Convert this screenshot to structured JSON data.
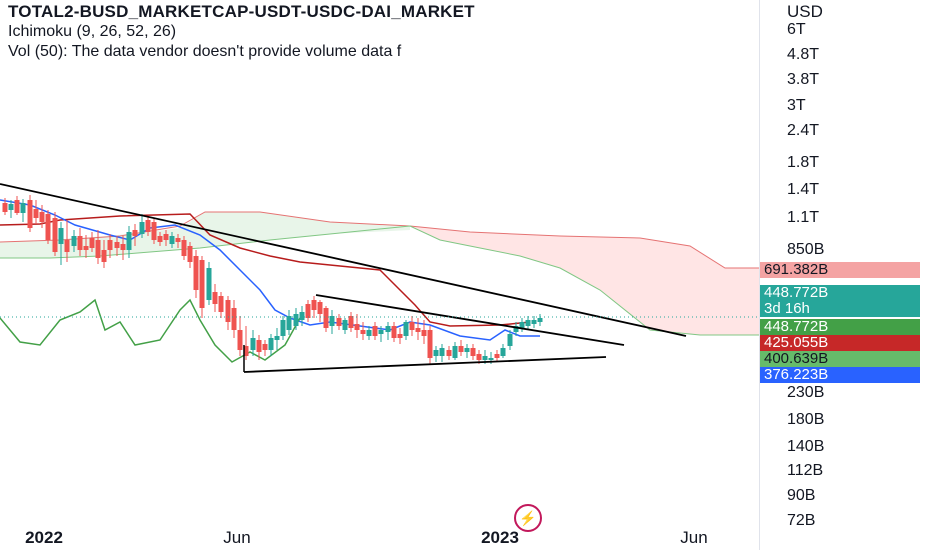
{
  "legend": {
    "title": "TOTAL2-BUSD_MARKETCAP-USDT-USDC-DAI_MARKET",
    "indicator": "Ichimoku (9, 26, 52, 26)",
    "volume_note": "Vol (50): The data vendor doesn't provide volume data f"
  },
  "price_axis": {
    "currency": "USD",
    "labels": [
      "6T",
      "4.8T",
      "3.8T",
      "3T",
      "2.4T",
      "1.8T",
      "1.4T",
      "1.1T",
      "850B",
      "230B",
      "180B",
      "140B",
      "112B",
      "90B",
      "72B"
    ],
    "tags": [
      {
        "text": "691.382B",
        "color": "#f4a3a3"
      },
      {
        "text": "448.772B",
        "color": "#26a69a"
      },
      {
        "text": "3d 16h",
        "color": "#26a69a"
      },
      {
        "text": "448.772B",
        "color": "#43a047"
      },
      {
        "text": "425.055B",
        "color": "#c62828"
      },
      {
        "text": "400.639B",
        "color": "#66bb6a"
      },
      {
        "text": "376.223B",
        "color": "#2962ff"
      }
    ]
  },
  "time_axis": {
    "labels": [
      "2022",
      "Jun",
      "2023",
      "Jun"
    ]
  },
  "colors": {
    "up_candle": "#26a69a",
    "down_candle": "#ef5350",
    "conversion_line": "#2962ff",
    "base_line": "#b71c1c",
    "lagging_span": "#43a047",
    "cloud_bull": "#e8f5e9",
    "cloud_bear": "#ffe5e5",
    "trendline": "#000000"
  },
  "logo_icon": "lightning-bolt-icon"
}
